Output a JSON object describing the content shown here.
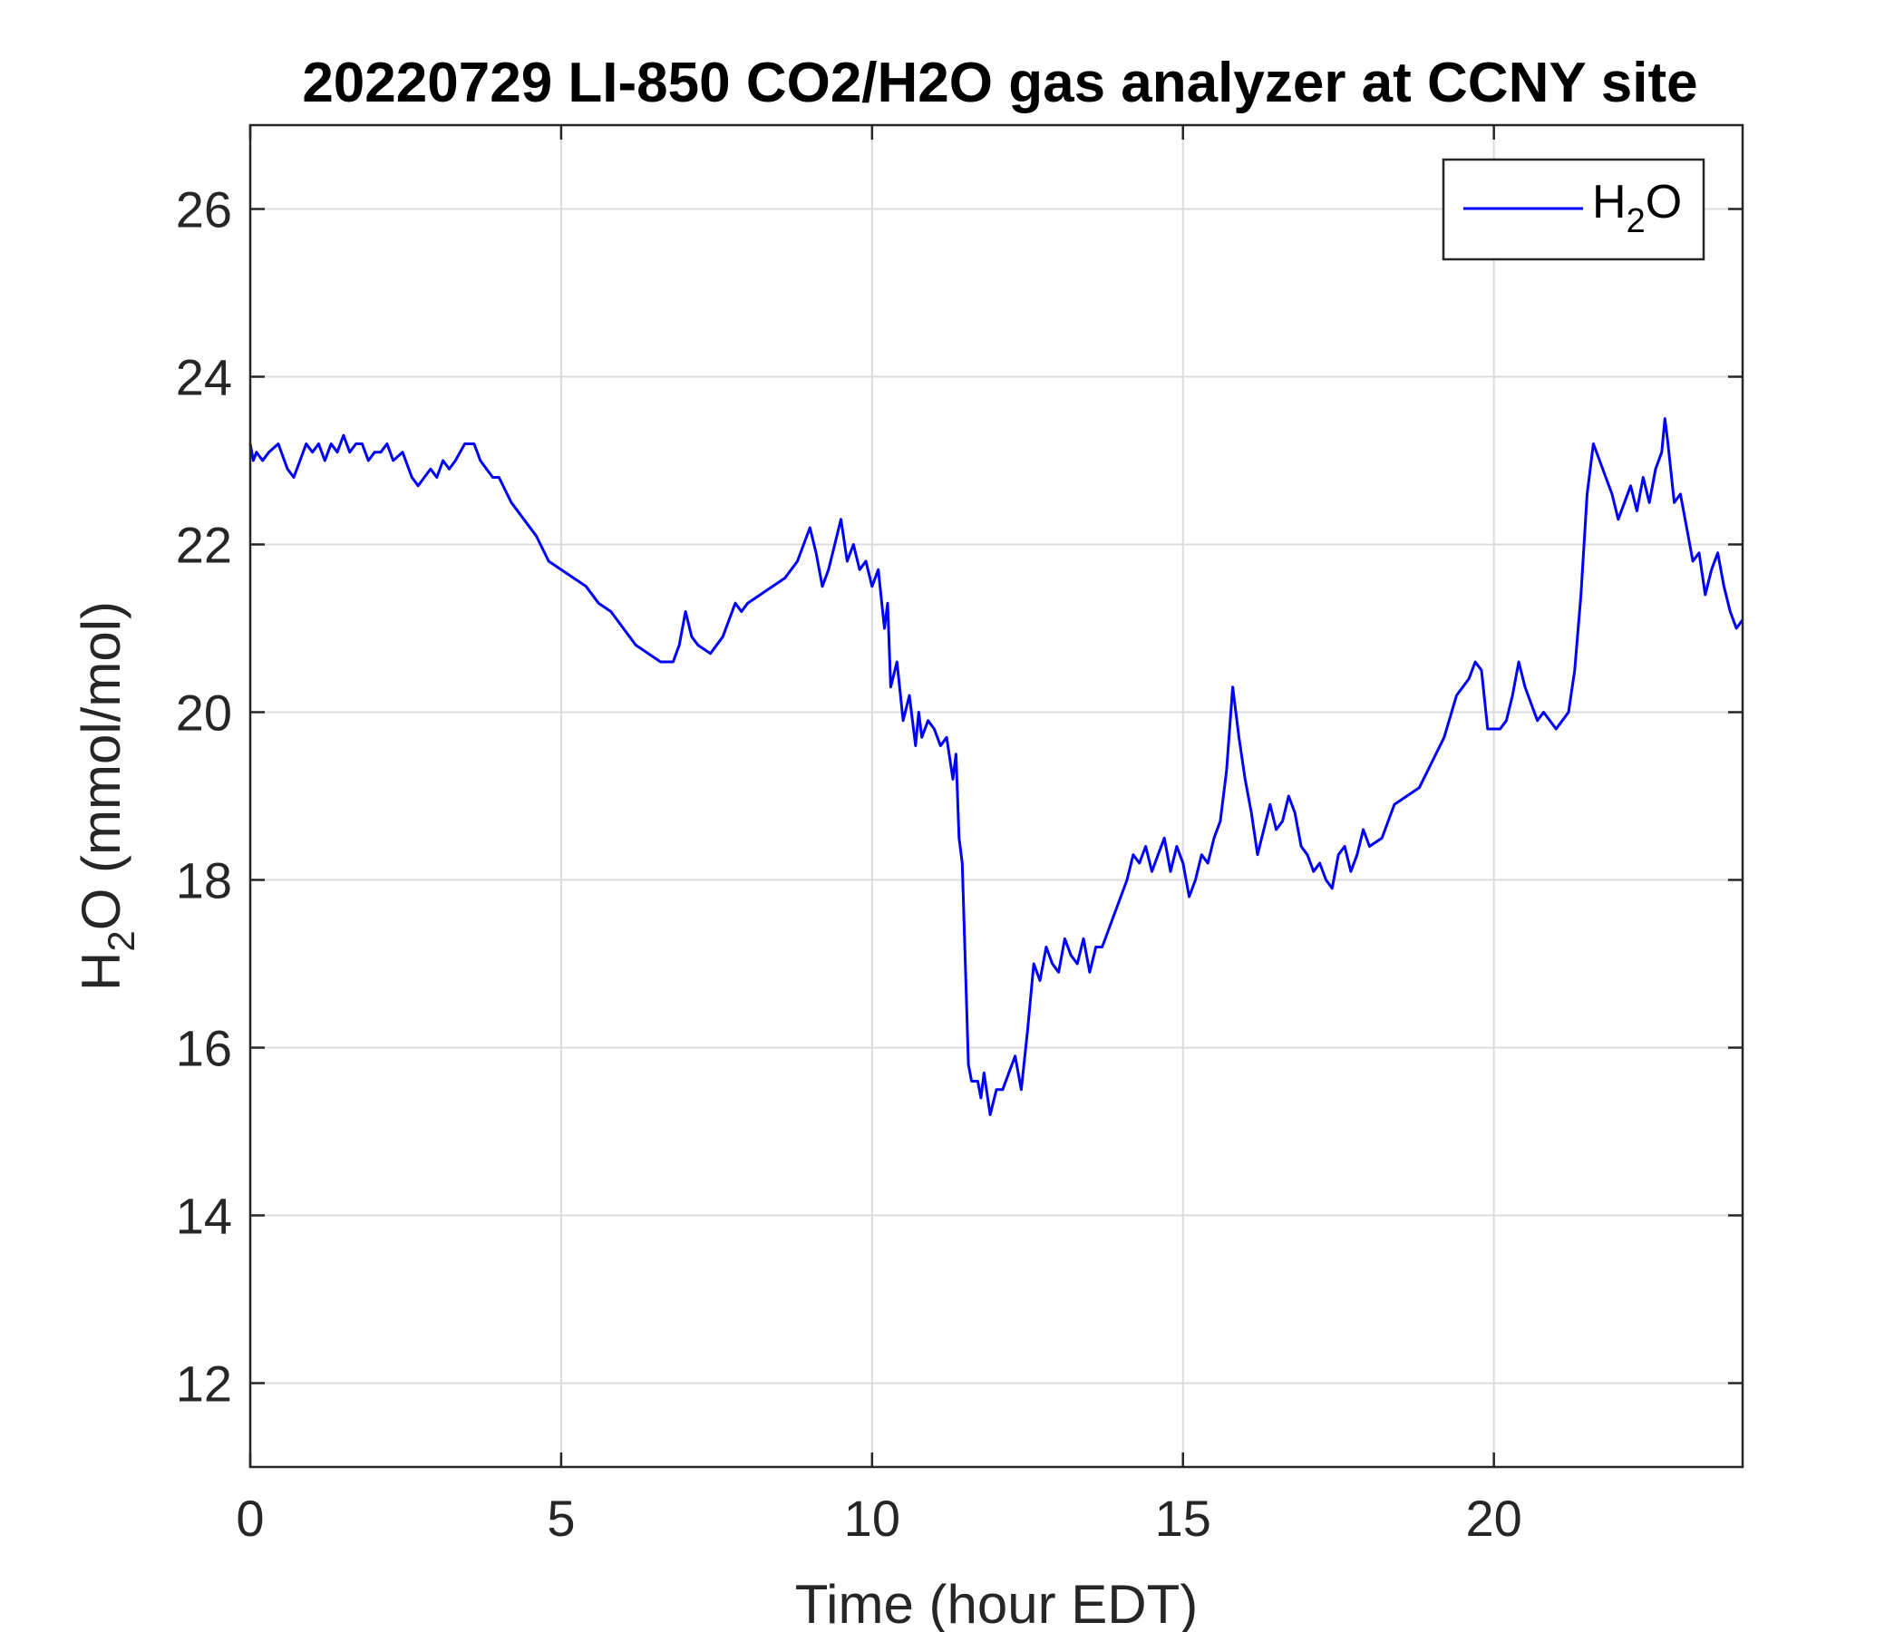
{
  "chart_data": {
    "type": "line",
    "title": "20220729 LI-850 CO2/H2O gas analyzer at CCNY site",
    "xlabel": "Time (hour EDT)",
    "ylabel": {
      "main": "H",
      "sub": "2",
      "rest": "O (mmol/mol)"
    },
    "xlim": [
      0,
      24
    ],
    "ylim": [
      11,
      27
    ],
    "xticks": [
      0,
      5,
      10,
      15,
      20
    ],
    "yticks": [
      12,
      14,
      16,
      18,
      20,
      22,
      24,
      26
    ],
    "grid": true,
    "legend_position": "top-right",
    "colors": {
      "line": "#0000ff",
      "grid": "#dcdcdc",
      "axis": "#262626"
    },
    "series": [
      {
        "name": {
          "main": "H",
          "sub": "2",
          "rest": "O"
        },
        "x": [
          0.0,
          0.05,
          0.1,
          0.2,
          0.3,
          0.45,
          0.6,
          0.7,
          0.8,
          0.9,
          1.0,
          1.1,
          1.2,
          1.3,
          1.4,
          1.5,
          1.6,
          1.7,
          1.8,
          1.9,
          2.0,
          2.1,
          2.2,
          2.3,
          2.45,
          2.6,
          2.7,
          2.8,
          2.9,
          3.0,
          3.1,
          3.2,
          3.3,
          3.45,
          3.6,
          3.7,
          3.8,
          3.9,
          4.0,
          4.2,
          4.4,
          4.6,
          4.8,
          5.0,
          5.2,
          5.4,
          5.6,
          5.8,
          6.0,
          6.2,
          6.4,
          6.6,
          6.8,
          6.9,
          7.0,
          7.1,
          7.2,
          7.4,
          7.6,
          7.8,
          7.9,
          8.0,
          8.2,
          8.4,
          8.6,
          8.8,
          8.9,
          9.0,
          9.1,
          9.2,
          9.3,
          9.4,
          9.5,
          9.6,
          9.7,
          9.8,
          9.9,
          10.0,
          10.1,
          10.2,
          10.25,
          10.3,
          10.4,
          10.5,
          10.6,
          10.7,
          10.75,
          10.8,
          10.9,
          11.0,
          11.1,
          11.2,
          11.3,
          11.35,
          11.4,
          11.45,
          11.5,
          11.55,
          11.6,
          11.7,
          11.75,
          11.8,
          11.9,
          12.0,
          12.1,
          12.2,
          12.3,
          12.4,
          12.5,
          12.6,
          12.7,
          12.8,
          12.9,
          13.0,
          13.1,
          13.2,
          13.3,
          13.4,
          13.5,
          13.6,
          13.7,
          13.8,
          13.9,
          14.0,
          14.1,
          14.2,
          14.3,
          14.4,
          14.5,
          14.6,
          14.7,
          14.8,
          14.9,
          15.0,
          15.1,
          15.2,
          15.3,
          15.4,
          15.5,
          15.6,
          15.7,
          15.8,
          15.9,
          16.0,
          16.1,
          16.2,
          16.3,
          16.4,
          16.5,
          16.6,
          16.7,
          16.8,
          16.9,
          17.0,
          17.1,
          17.2,
          17.3,
          17.4,
          17.5,
          17.6,
          17.7,
          17.8,
          17.9,
          18.0,
          18.2,
          18.4,
          18.6,
          18.8,
          19.0,
          19.2,
          19.4,
          19.6,
          19.7,
          19.8,
          19.9,
          20.0,
          20.1,
          20.2,
          20.3,
          20.4,
          20.5,
          20.6,
          20.7,
          20.8,
          20.9,
          21.0,
          21.1,
          21.2,
          21.3,
          21.4,
          21.5,
          21.6,
          21.7,
          21.8,
          21.9,
          22.0,
          22.1,
          22.2,
          22.3,
          22.4,
          22.5,
          22.6,
          22.7,
          22.75,
          22.8,
          22.9,
          23.0,
          23.1,
          23.2,
          23.3,
          23.4,
          23.5,
          23.6,
          23.7,
          23.8,
          23.9,
          24.0
        ],
        "y": [
          23.2,
          23.0,
          23.1,
          23.0,
          23.1,
          23.2,
          22.9,
          22.8,
          23.0,
          23.2,
          23.1,
          23.2,
          23.0,
          23.2,
          23.1,
          23.3,
          23.1,
          23.2,
          23.2,
          23.0,
          23.1,
          23.1,
          23.2,
          23.0,
          23.1,
          22.8,
          22.7,
          22.8,
          22.9,
          22.8,
          23.0,
          22.9,
          23.0,
          23.2,
          23.2,
          23.0,
          22.9,
          22.8,
          22.8,
          22.5,
          22.3,
          22.1,
          21.8,
          21.7,
          21.6,
          21.5,
          21.3,
          21.2,
          21.0,
          20.8,
          20.7,
          20.6,
          20.6,
          20.8,
          21.2,
          20.9,
          20.8,
          20.7,
          20.9,
          21.3,
          21.2,
          21.3,
          21.4,
          21.5,
          21.6,
          21.8,
          22.0,
          22.2,
          21.9,
          21.5,
          21.7,
          22.0,
          22.3,
          21.8,
          22.0,
          21.7,
          21.8,
          21.5,
          21.7,
          21.0,
          21.3,
          20.3,
          20.6,
          19.9,
          20.2,
          19.6,
          20.0,
          19.7,
          19.9,
          19.8,
          19.6,
          19.7,
          19.2,
          19.5,
          18.5,
          18.2,
          17.0,
          15.8,
          15.6,
          15.6,
          15.4,
          15.7,
          15.2,
          15.5,
          15.5,
          15.7,
          15.9,
          15.5,
          16.2,
          17.0,
          16.8,
          17.2,
          17.0,
          16.9,
          17.3,
          17.1,
          17.0,
          17.3,
          16.9,
          17.2,
          17.2,
          17.4,
          17.6,
          17.8,
          18.0,
          18.3,
          18.2,
          18.4,
          18.1,
          18.3,
          18.5,
          18.1,
          18.4,
          18.2,
          17.8,
          18.0,
          18.3,
          18.2,
          18.5,
          18.7,
          19.3,
          20.3,
          19.7,
          19.2,
          18.8,
          18.3,
          18.6,
          18.9,
          18.6,
          18.7,
          19.0,
          18.8,
          18.4,
          18.3,
          18.1,
          18.2,
          18.0,
          17.9,
          18.3,
          18.4,
          18.1,
          18.3,
          18.6,
          18.4,
          18.5,
          18.9,
          19.0,
          19.1,
          19.4,
          19.7,
          20.2,
          20.4,
          20.6,
          20.5,
          19.8,
          19.8,
          19.8,
          19.9,
          20.2,
          20.6,
          20.3,
          20.1,
          19.9,
          20.0,
          19.9,
          19.8,
          19.9,
          20.0,
          20.5,
          21.4,
          22.6,
          23.2,
          23.0,
          22.8,
          22.6,
          22.3,
          22.5,
          22.7,
          22.4,
          22.8,
          22.5,
          22.9,
          23.1,
          23.5,
          23.2,
          22.5,
          22.6,
          22.2,
          21.8,
          21.9,
          21.4,
          21.7,
          21.9,
          21.5,
          21.2,
          21.0,
          21.1
        ]
      }
    ]
  }
}
